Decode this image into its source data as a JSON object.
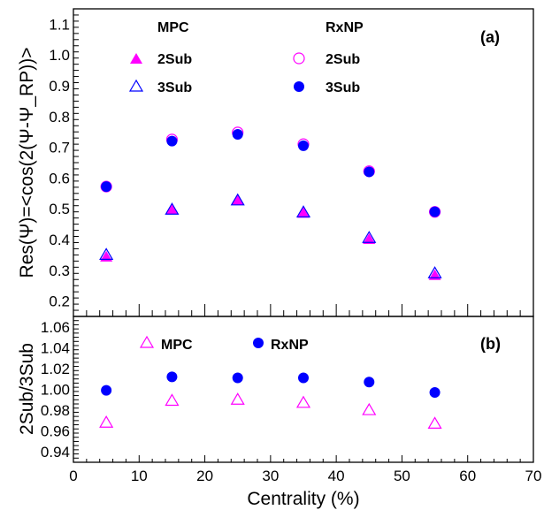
{
  "chart_data": [
    {
      "type": "scatter",
      "panel_label": "(a)",
      "ylabel": "Res(Ψ)=<cos(2(Ψ-Ψ_RP))>",
      "xlabel": "",
      "xlim": [
        0,
        70
      ],
      "ylim": [
        0.15,
        1.15
      ],
      "yticks": [
        "0.2",
        "0.3",
        "0.4",
        "0.5",
        "0.6",
        "0.7",
        "0.8",
        "0.9",
        "1.0",
        "1.1"
      ],
      "legend_groups": [
        "MPC",
        "RxNP"
      ],
      "series": [
        {
          "name": "2Sub",
          "group": "MPC",
          "marker": "triangle-filled",
          "color": "#ff00ff",
          "x": [
            5,
            15,
            25,
            35,
            45,
            55
          ],
          "values": [
            0.343,
            0.497,
            0.527,
            0.485,
            0.4,
            0.283
          ]
        },
        {
          "name": "3Sub",
          "group": "MPC",
          "marker": "triangle-open",
          "color": "#0000ff",
          "x": [
            5,
            15,
            25,
            35,
            45,
            55
          ],
          "values": [
            0.35,
            0.497,
            0.527,
            0.488,
            0.405,
            0.29
          ]
        },
        {
          "name": "2Sub",
          "group": "RxNP",
          "marker": "circle-open",
          "color": "#ff00ff",
          "x": [
            5,
            15,
            25,
            35,
            45,
            55
          ],
          "values": [
            0.572,
            0.725,
            0.748,
            0.71,
            0.622,
            0.49
          ]
        },
        {
          "name": "3Sub",
          "group": "RxNP",
          "marker": "circle-filled",
          "color": "#0000ff",
          "x": [
            5,
            15,
            25,
            35,
            45,
            55
          ],
          "values": [
            0.572,
            0.72,
            0.742,
            0.705,
            0.62,
            0.49
          ]
        }
      ]
    },
    {
      "type": "scatter",
      "panel_label": "(b)",
      "ylabel": "2Sub/3Sub",
      "xlabel": "Centrality (%)",
      "xlim": [
        0,
        70
      ],
      "ylim": [
        0.93,
        1.07
      ],
      "xticks": [
        "0",
        "10",
        "20",
        "30",
        "40",
        "50",
        "60",
        "70"
      ],
      "yticks": [
        "0.94",
        "0.96",
        "0.98",
        "1.00",
        "1.02",
        "1.04",
        "1.06"
      ],
      "series": [
        {
          "name": "MPC",
          "marker": "triangle-open",
          "color": "#ff00ff",
          "x": [
            5,
            15,
            25,
            35,
            45,
            55
          ],
          "values": [
            0.968,
            0.989,
            0.99,
            0.987,
            0.98,
            0.967
          ]
        },
        {
          "name": "RxNP",
          "marker": "circle-filled",
          "color": "#0000ff",
          "x": [
            5,
            15,
            25,
            35,
            45,
            55
          ],
          "values": [
            0.999,
            1.012,
            1.011,
            1.011,
            1.007,
            0.997
          ]
        }
      ]
    }
  ]
}
